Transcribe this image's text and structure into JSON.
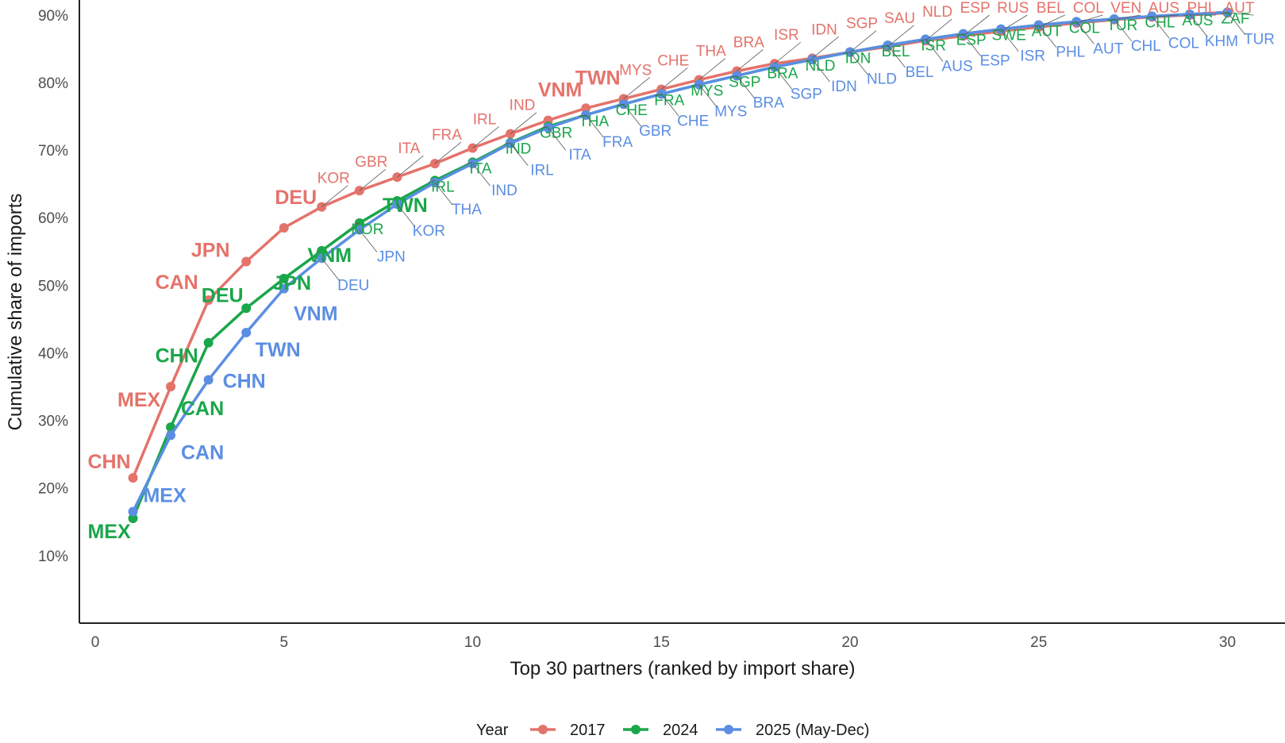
{
  "chart_data": {
    "type": "line",
    "xlabel": "Top 30 partners (ranked by import share)",
    "ylabel": "Cumulative share of imports",
    "xlim": [
      0,
      30
    ],
    "ylim": [
      0,
      0.92
    ],
    "x_ticks": [
      0,
      5,
      10,
      15,
      20,
      25,
      30
    ],
    "x_tick_labels": [
      "0",
      "5",
      "10",
      "15",
      "20",
      "25",
      "30"
    ],
    "y_ticks": [
      0.1,
      0.2,
      0.3,
      0.4,
      0.5,
      0.6,
      0.7,
      0.8,
      0.9
    ],
    "y_tick_labels": [
      "10%",
      "20%",
      "30%",
      "40%",
      "50%",
      "60%",
      "70%",
      "80%",
      "90%"
    ],
    "grid": false,
    "legend": {
      "title": "Year",
      "position": "bottom"
    },
    "series": [
      {
        "name": "2017",
        "color": "#e4736b",
        "x": [
          1,
          2,
          3,
          4,
          5,
          6,
          7,
          8,
          9,
          10,
          11,
          12,
          13,
          14,
          15,
          16,
          17,
          18,
          19,
          20,
          21,
          22,
          23,
          24,
          25,
          26,
          27,
          28,
          29,
          30
        ],
        "values": [
          0.215,
          0.35,
          0.478,
          0.535,
          0.585,
          0.616,
          0.64,
          0.66,
          0.68,
          0.703,
          0.724,
          0.744,
          0.762,
          0.776,
          0.79,
          0.804,
          0.817,
          0.828,
          0.836,
          0.845,
          0.853,
          0.862,
          0.869,
          0.876,
          0.882,
          0.888,
          0.893,
          0.897,
          0.9,
          0.903
        ],
        "labels": [
          "CHN",
          "MEX",
          "CAN",
          "JPN",
          "DEU",
          "KOR",
          "GBR",
          "ITA",
          "FRA",
          "IRL",
          "IND",
          "VNM",
          "TWN",
          "MYS",
          "CHE",
          "THA",
          "BRA",
          "ISR",
          "IDN",
          "SGP",
          "SAU",
          "NLD",
          "ESP",
          "RUS",
          "BEL",
          "COL",
          "VEN",
          "AUS",
          "PHL",
          "AUT"
        ]
      },
      {
        "name": "2024",
        "color": "#1aa64a",
        "x": [
          1,
          2,
          3,
          4,
          5,
          6,
          7,
          8,
          9,
          10,
          11,
          12,
          13,
          14,
          15,
          16,
          17,
          18,
          19,
          20,
          21,
          22,
          23,
          24,
          25,
          26,
          27,
          28,
          29,
          30
        ],
        "values": [
          0.155,
          0.29,
          0.415,
          0.466,
          0.51,
          0.551,
          0.592,
          0.625,
          0.655,
          0.682,
          0.711,
          0.735,
          0.752,
          0.768,
          0.783,
          0.797,
          0.81,
          0.823,
          0.834,
          0.845,
          0.855,
          0.864,
          0.872,
          0.879,
          0.885,
          0.89,
          0.894,
          0.898,
          0.901,
          0.904
        ],
        "labels": [
          "MEX",
          "CAN",
          "CHN",
          "DEU",
          "JPN",
          "VNM",
          "KOR",
          "TWN",
          "IRL",
          "ITA",
          "IND",
          "GBR",
          "THA",
          "CHE",
          "FRA",
          "MYS",
          "SGP",
          "BRA",
          "NLD",
          "IDN",
          "BEL",
          "ISR",
          "ESP",
          "SWE",
          "AUT",
          "COL",
          "TUR",
          "CHL",
          "AUS",
          "ZAF"
        ]
      },
      {
        "name": "2025 (May-Dec)",
        "color": "#5b8ee3",
        "x": [
          1,
          2,
          3,
          4,
          5,
          6,
          7,
          8,
          9,
          10,
          11,
          12,
          13,
          14,
          15,
          16,
          17,
          18,
          19,
          20,
          21,
          22,
          23,
          24,
          25,
          26,
          27,
          28,
          29,
          30
        ],
        "values": [
          0.165,
          0.278,
          0.36,
          0.43,
          0.495,
          0.54,
          0.582,
          0.62,
          0.652,
          0.68,
          0.71,
          0.733,
          0.752,
          0.768,
          0.783,
          0.797,
          0.81,
          0.823,
          0.834,
          0.845,
          0.855,
          0.864,
          0.872,
          0.879,
          0.885,
          0.89,
          0.894,
          0.898,
          0.901,
          0.904
        ],
        "labels": [
          "MEX",
          "CAN",
          "CHN",
          "TWN",
          "VNM",
          "DEU",
          "JPN",
          "KOR",
          "THA",
          "IND",
          "IRL",
          "ITA",
          "FRA",
          "GBR",
          "CHE",
          "MYS",
          "BRA",
          "SGP",
          "IDN",
          "NLD",
          "BEL",
          "AUS",
          "ESP",
          "ISR",
          "PHL",
          "AUT",
          "CHL",
          "COL",
          "KHM",
          "TUR"
        ]
      }
    ]
  }
}
